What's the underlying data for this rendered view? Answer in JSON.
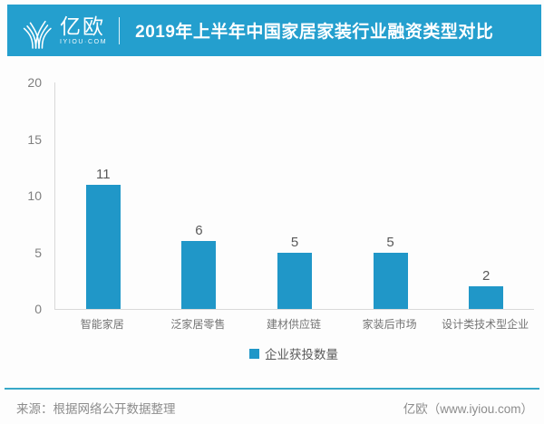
{
  "header": {
    "logo": {
      "name": "亿欧",
      "subtitle": "IYIOU·COM"
    },
    "title": "2019年上半年中国家居家装行业融资类型对比"
  },
  "chart_data": {
    "type": "bar",
    "title": "2019年上半年中国家居家装行业融资类型对比",
    "categories": [
      "智能家居",
      "泛家居零售",
      "建材供应链",
      "家装后市场",
      "设计类技术型企业"
    ],
    "values": [
      11,
      6,
      5,
      5,
      2
    ],
    "ylim": [
      0,
      20
    ],
    "yticks": [
      0,
      5,
      10,
      15,
      20
    ],
    "grid": false,
    "legend": {
      "label": "企业获投数量",
      "position": "bottom"
    }
  },
  "footer": {
    "source": "来源：根据网络公开数据整理",
    "brand": "亿欧（www.iyiou.com）"
  },
  "colors": {
    "header_bg": "#249fce",
    "bar": "#2097c8",
    "footer_line": "#38a8c8",
    "axis": "#d9d9d9",
    "tick_label": "#7f7f7f",
    "value_label": "#595959",
    "category_label": "#737373",
    "footer_text": "#8c8c8c"
  }
}
